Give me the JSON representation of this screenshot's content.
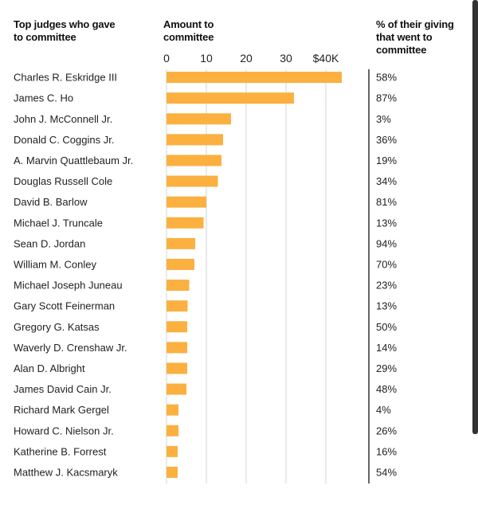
{
  "headers": {
    "judges": "Top judges who gave to committee",
    "amount": "Amount to committee",
    "pct": "% of their giving that went to committee"
  },
  "chart_data": {
    "type": "bar",
    "orientation": "horizontal",
    "bar_color": "#FBB040",
    "xlim": [
      0,
      45000
    ],
    "xticks": [
      0,
      10000,
      20000,
      30000,
      40000
    ],
    "xtick_labels": [
      "0",
      "10",
      "20",
      "30",
      "$40K"
    ],
    "categories": [
      "Charles R. Eskridge III",
      "James C. Ho",
      "John J. McConnell Jr.",
      "Donald C. Coggins Jr.",
      "A. Marvin Quattlebaum Jr.",
      "Douglas Russell Cole",
      "David B. Barlow",
      "Michael J. Truncale",
      "Sean D. Jordan",
      "William M. Conley",
      "Michael Joseph Juneau",
      "Gary Scott Feinerman",
      "Gregory G. Katsas",
      "Waverly D. Crenshaw Jr.",
      "Alan D. Albright",
      "James David Cain Jr.",
      "Richard Mark Gergel",
      "Howard C. Nielson Jr.",
      "Katherine B. Forrest",
      "Matthew J. Kacsmaryk"
    ],
    "values": [
      44000,
      32000,
      16200,
      14200,
      13800,
      12900,
      10000,
      9300,
      7200,
      7000,
      5700,
      5300,
      5200,
      5200,
      5200,
      5000,
      3000,
      3000,
      2800,
      2800
    ],
    "pct_labels": [
      "58%",
      "87%",
      "3%",
      "36%",
      "19%",
      "34%",
      "81%",
      "13%",
      "94%",
      "70%",
      "23%",
      "13%",
      "50%",
      "14%",
      "29%",
      "48%",
      "4%",
      "26%",
      "16%",
      "54%"
    ]
  }
}
